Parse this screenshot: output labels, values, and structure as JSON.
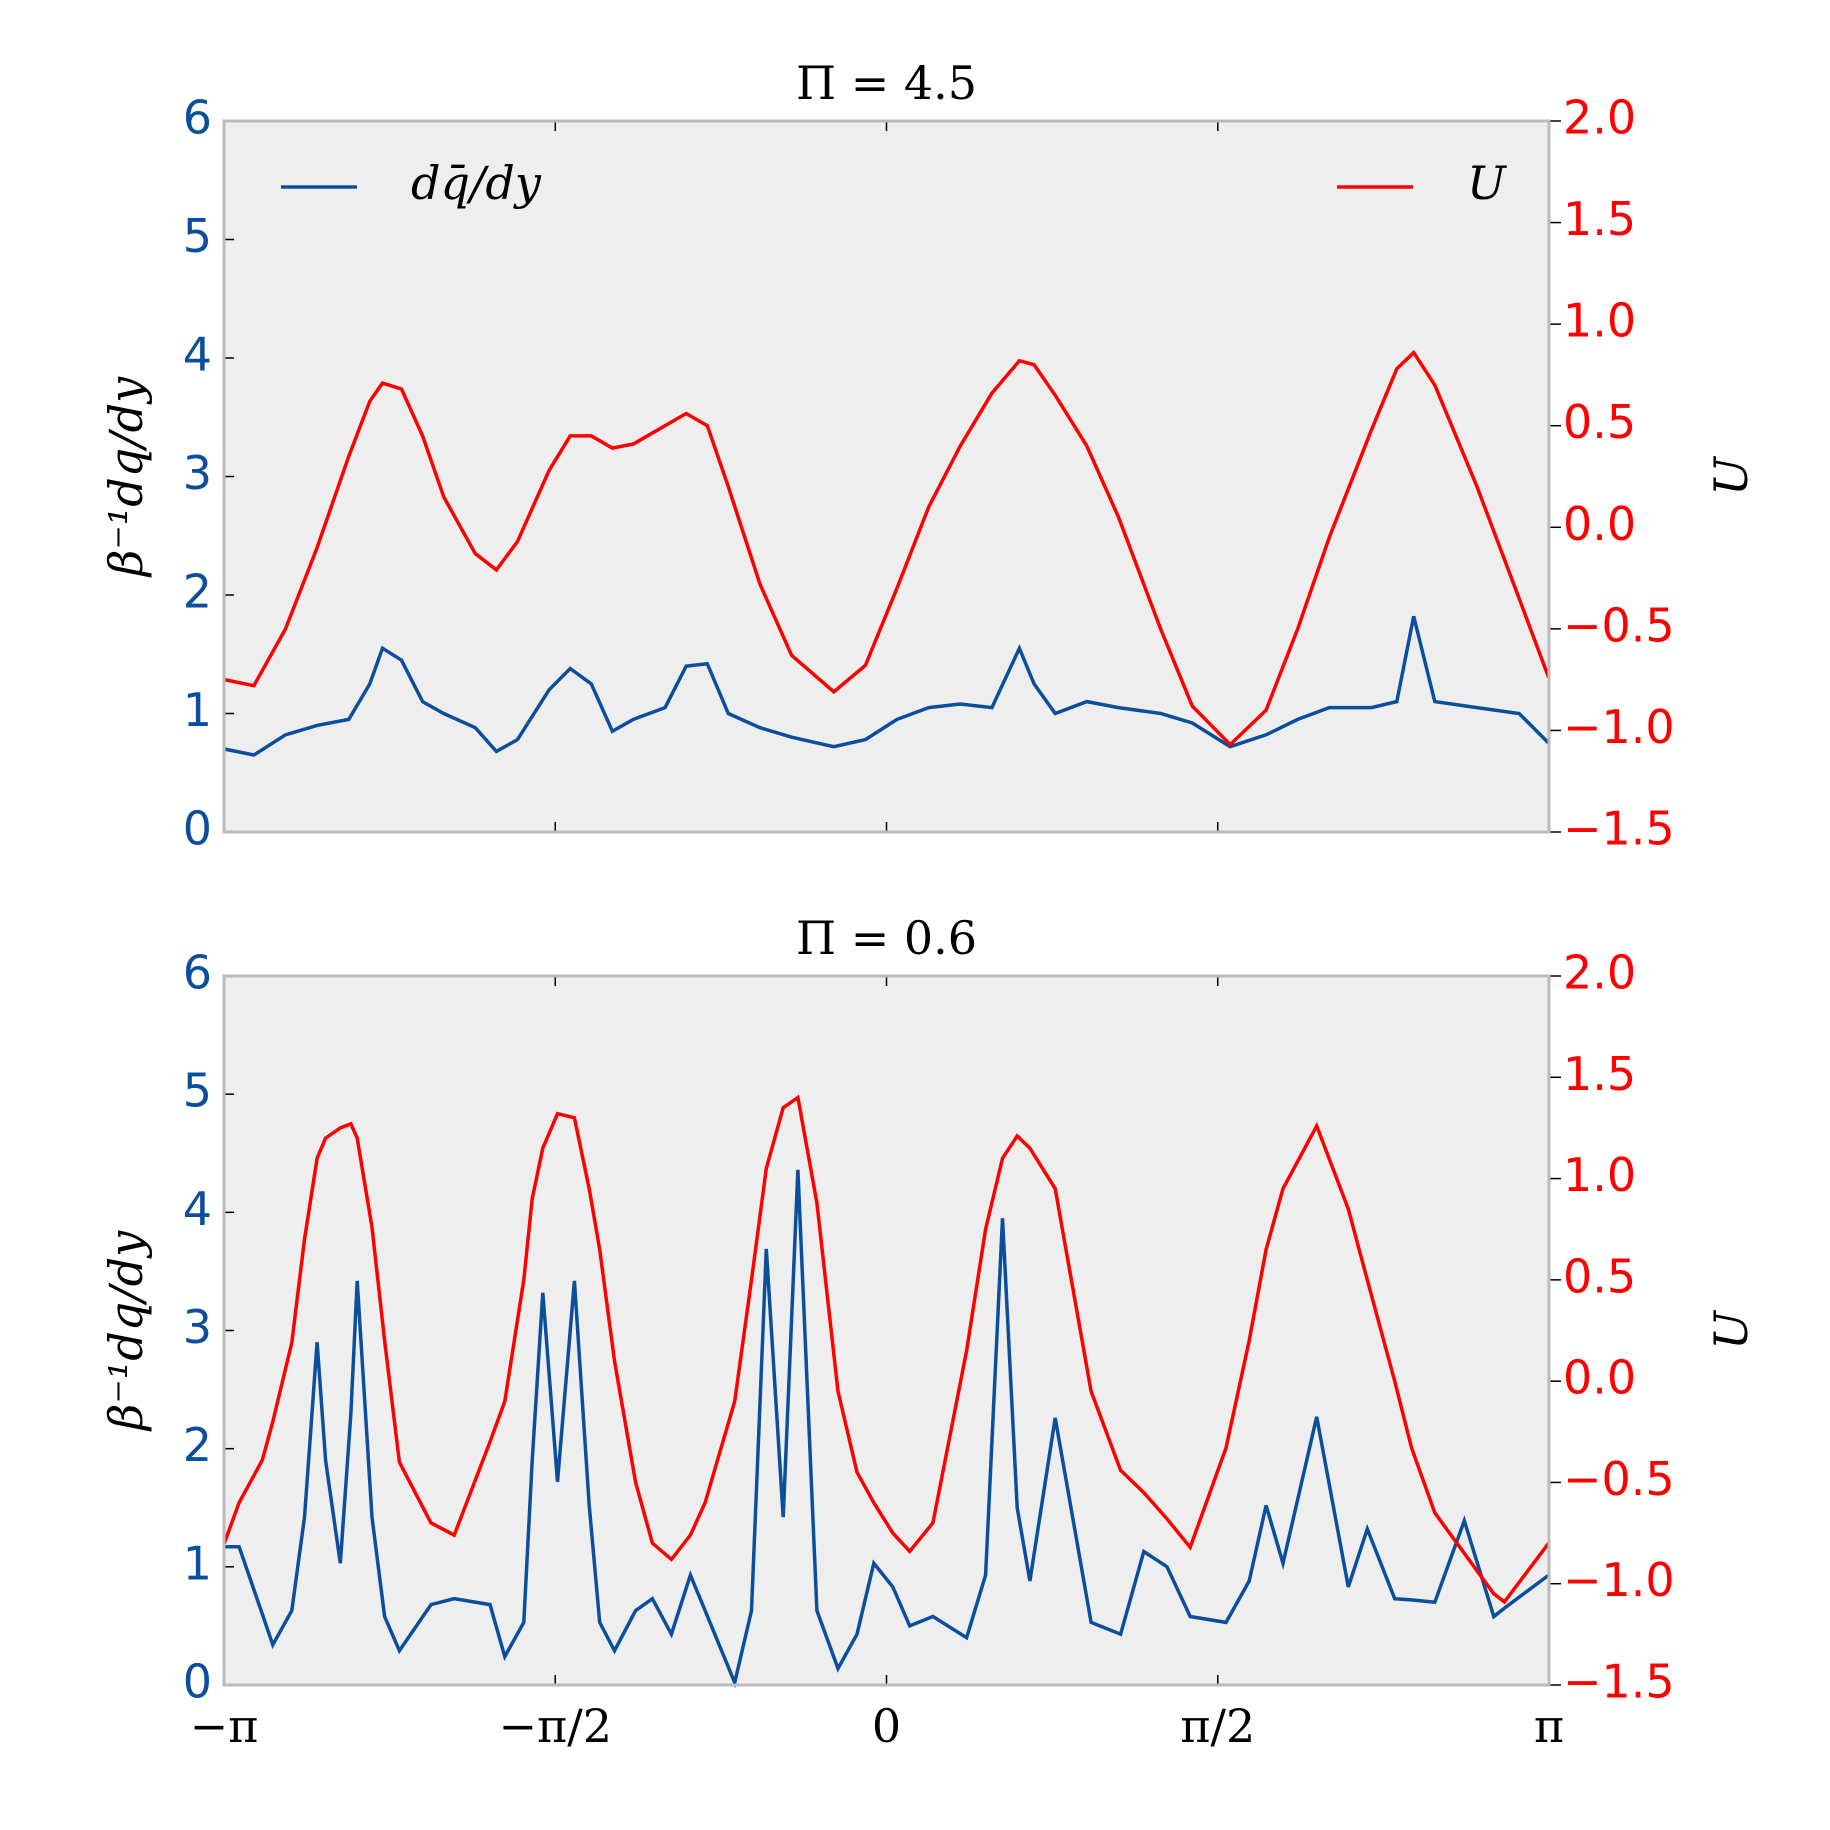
{
  "chart_data": [
    {
      "type": "line",
      "title": "Π = 4.5",
      "ylabel": "β⁻¹dq/dy",
      "y2label": "U",
      "legend": true,
      "x": [
        -3.14,
        -3.0,
        -2.85,
        -2.7,
        -2.55,
        -2.45,
        -2.39,
        -2.3,
        -2.2,
        -2.1,
        -1.95,
        -1.85,
        -1.75,
        -1.6,
        -1.5,
        -1.4,
        -1.3,
        -1.2,
        -1.05,
        -0.95,
        -0.85,
        -0.75,
        -0.6,
        -0.45,
        -0.25,
        -0.1,
        0.05,
        0.2,
        0.35,
        0.5,
        0.63,
        0.7,
        0.8,
        0.95,
        1.1,
        1.3,
        1.45,
        1.63,
        1.8,
        1.95,
        2.1,
        2.3,
        2.42,
        2.5,
        2.6,
        2.8,
        3.0,
        3.14
      ],
      "xlim": [
        -3.14159,
        3.14159
      ],
      "xticks": [
        -3.14159,
        -1.5708,
        0,
        1.5708,
        3.14159
      ],
      "ylim": [
        0,
        6
      ],
      "yticks": [
        0,
        1,
        2,
        3,
        4,
        5,
        6
      ],
      "y2lim": [
        -1.5,
        2.0
      ],
      "y2ticks": [
        {
          "value": -1.5,
          "label": "−1.5"
        },
        {
          "value": -1.0,
          "label": "−1.0"
        },
        {
          "value": -0.5,
          "label": "−0.5"
        },
        {
          "value": 0,
          "label": "0.0"
        },
        0.5,
        {
          "value": 1.0,
          "label": "1.0"
        },
        1.5,
        {
          "value": 2.0,
          "label": "2.0"
        }
      ],
      "series": [
        {
          "name": "dq̄/dy",
          "color": "#0b4f9c",
          "values": [
            0.7,
            0.65,
            0.82,
            0.9,
            0.95,
            1.25,
            1.55,
            1.45,
            1.1,
            1.0,
            0.88,
            0.68,
            0.78,
            1.2,
            1.38,
            1.25,
            0.85,
            0.95,
            1.05,
            1.4,
            1.42,
            1.0,
            0.88,
            0.8,
            0.72,
            0.78,
            0.95,
            1.05,
            1.08,
            1.05,
            1.55,
            1.25,
            1.0,
            1.1,
            1.05,
            1.0,
            0.92,
            0.72,
            0.82,
            0.95,
            1.05,
            1.05,
            1.1,
            1.82,
            1.1,
            1.05,
            1.0,
            0.75
          ]
        },
        {
          "name": "U",
          "color": "#ff0000",
          "axis": "y2",
          "values": [
            -0.75,
            -0.78,
            -0.5,
            -0.1,
            0.35,
            0.62,
            0.71,
            0.68,
            0.45,
            0.15,
            -0.13,
            -0.21,
            -0.07,
            0.28,
            0.45,
            0.45,
            0.39,
            0.41,
            0.5,
            0.56,
            0.5,
            0.2,
            -0.28,
            -0.63,
            -0.81,
            -0.68,
            -0.3,
            0.1,
            0.4,
            0.66,
            0.82,
            0.8,
            0.65,
            0.4,
            0.05,
            -0.5,
            -0.88,
            -1.07,
            -0.9,
            -0.5,
            -0.05,
            0.48,
            0.78,
            0.86,
            0.7,
            0.2,
            -0.35,
            -0.74
          ]
        }
      ]
    },
    {
      "type": "line",
      "title": "Π = 0.6",
      "ylabel": "β⁻¹dq/dy",
      "y2label": "U",
      "x": [
        -3.14,
        -3.07,
        -2.96,
        -2.91,
        -2.82,
        -2.76,
        -2.7,
        -2.66,
        -2.59,
        -2.54,
        -2.51,
        -2.44,
        -2.38,
        -2.31,
        -2.16,
        -2.05,
        -1.88,
        -1.81,
        -1.72,
        -1.68,
        -1.63,
        -1.56,
        -1.48,
        -1.41,
        -1.36,
        -1.29,
        -1.19,
        -1.11,
        -1.02,
        -0.93,
        -0.86,
        -0.72,
        -0.64,
        -0.57,
        -0.49,
        -0.42,
        -0.33,
        -0.23,
        -0.14,
        -0.06,
        0.03,
        0.11,
        0.22,
        0.38,
        0.47,
        0.55,
        0.62,
        0.68,
        0.8,
        0.97,
        1.11,
        1.22,
        1.33,
        1.44,
        1.61,
        1.72,
        1.8,
        1.88,
        2.04,
        2.19,
        2.28,
        2.41,
        2.49,
        2.6,
        2.74,
        2.88,
        2.93,
        3.14
      ],
      "xlim": [
        -3.14159,
        3.14159
      ],
      "xticks": [
        {
          "value": -3.14159,
          "label": "−π"
        },
        {
          "value": -1.5708,
          "label": "−π/2"
        },
        0,
        {
          "value": 1.5708,
          "label": "π/2"
        },
        {
          "value": 3.14159,
          "label": "π"
        }
      ],
      "ylim": [
        0,
        6
      ],
      "yticks": [
        0,
        1,
        2,
        3,
        4,
        5,
        6
      ],
      "y2lim": [
        -1.5,
        2.0
      ],
      "y2ticks": [
        {
          "value": -1.5,
          "label": "−1.5"
        },
        {
          "value": -1.0,
          "label": "−1.0"
        },
        {
          "value": -0.5,
          "label": "−0.5"
        },
        {
          "value": 0,
          "label": "0.0"
        },
        0.5,
        {
          "value": 1.0,
          "label": "1.0"
        },
        1.5,
        {
          "value": 2.0,
          "label": "2.0"
        }
      ],
      "series": [
        {
          "color": "#0b4f9c",
          "values": [
            1.17,
            1.17,
            0.6,
            0.34,
            0.63,
            1.42,
            2.9,
            1.9,
            1.03,
            2.3,
            3.42,
            1.42,
            0.58,
            0.29,
            0.68,
            0.73,
            0.68,
            0.24,
            0.53,
            1.9,
            3.32,
            1.72,
            3.42,
            1.52,
            0.53,
            0.29,
            0.63,
            0.73,
            0.43,
            0.93,
            0.63,
            0.02,
            0.63,
            3.69,
            1.42,
            4.36,
            0.63,
            0.14,
            0.43,
            1.03,
            0.83,
            0.5,
            0.58,
            0.4,
            0.93,
            3.95,
            1.5,
            0.88,
            2.26,
            0.53,
            0.43,
            1.13,
            1.0,
            0.58,
            0.53,
            0.88,
            1.52,
            1.03,
            2.27,
            0.83,
            1.32,
            0.73,
            0.72,
            0.7,
            1.39,
            0.58,
            0.65,
            0.93
          ]
        },
        {
          "color": "#ff0000",
          "axis": "y2",
          "values": [
            -0.8,
            -0.6,
            -0.39,
            -0.2,
            0.19,
            0.7,
            1.1,
            1.2,
            1.25,
            1.27,
            1.2,
            0.76,
            0.2,
            -0.4,
            -0.7,
            -0.76,
            -0.3,
            -0.1,
            0.5,
            0.9,
            1.15,
            1.32,
            1.3,
            0.95,
            0.65,
            0.1,
            -0.5,
            -0.8,
            -0.88,
            -0.76,
            -0.6,
            -0.1,
            0.5,
            1.05,
            1.35,
            1.4,
            0.88,
            -0.05,
            -0.45,
            -0.6,
            -0.75,
            -0.84,
            -0.7,
            0.15,
            0.75,
            1.1,
            1.21,
            1.15,
            0.95,
            -0.05,
            -0.44,
            -0.55,
            -0.68,
            -0.82,
            -0.33,
            0.2,
            0.65,
            0.95,
            1.26,
            0.85,
            0.5,
            0.0,
            -0.33,
            -0.65,
            -0.85,
            -1.05,
            -1.09,
            -0.8
          ]
        }
      ]
    }
  ]
}
